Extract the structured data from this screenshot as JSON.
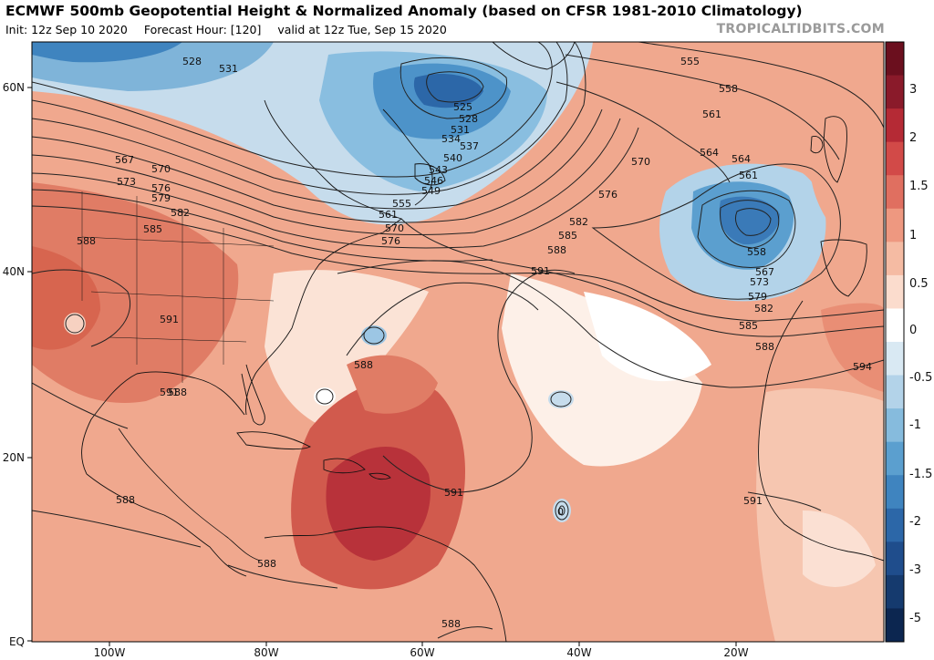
{
  "header": {
    "title": "ECMWF 500mb Geopotential Height & Normalized Anomaly (based on CFSR 1981-2010 Climatology)",
    "init": "Init: 12z Sep 10 2020",
    "forecast_hour": "Forecast Hour: [120]",
    "valid": "valid at 12z Tue, Sep 15 2020",
    "watermark": "TROPICALTIDBITS.COM"
  },
  "axes": {
    "lat_ticks": [
      "60N",
      "40N",
      "20N",
      "EQ"
    ],
    "lon_ticks": [
      "100W",
      "80W",
      "60W",
      "40W",
      "20W"
    ]
  },
  "colorbar": {
    "labels": [
      "3",
      "2",
      "1.5",
      "1",
      "0.5",
      "0",
      "-0.5",
      "-1",
      "-1.5",
      "-2",
      "-3",
      "-5"
    ],
    "colors": [
      "#6b0f1e",
      "#8a1a2a",
      "#b52a35",
      "#d24a48",
      "#e06f60",
      "#ee9880",
      "#f5bba3",
      "#fbdccd",
      "#ffffff",
      "#d9e9f3",
      "#b3d3e9",
      "#86bbdd",
      "#5b9fcf",
      "#3f84bf",
      "#2c67a8",
      "#1f4d8c",
      "#153a6e",
      "#0c2650"
    ]
  },
  "contour_labels": [
    "528",
    "531",
    "525",
    "528",
    "531",
    "534",
    "537",
    "540",
    "543",
    "546",
    "549",
    "555",
    "561",
    "570",
    "576",
    "567",
    "570",
    "573",
    "576",
    "579",
    "582",
    "585",
    "588",
    "591",
    "591",
    "591",
    "588",
    "588",
    "588",
    "0",
    "555",
    "558",
    "561",
    "564",
    "564",
    "561",
    "570",
    "576",
    "582",
    "585",
    "588",
    "591",
    "558",
    "567",
    "573",
    "579",
    "582",
    "585",
    "588",
    "594",
    "591",
    "588",
    "588"
  ]
}
